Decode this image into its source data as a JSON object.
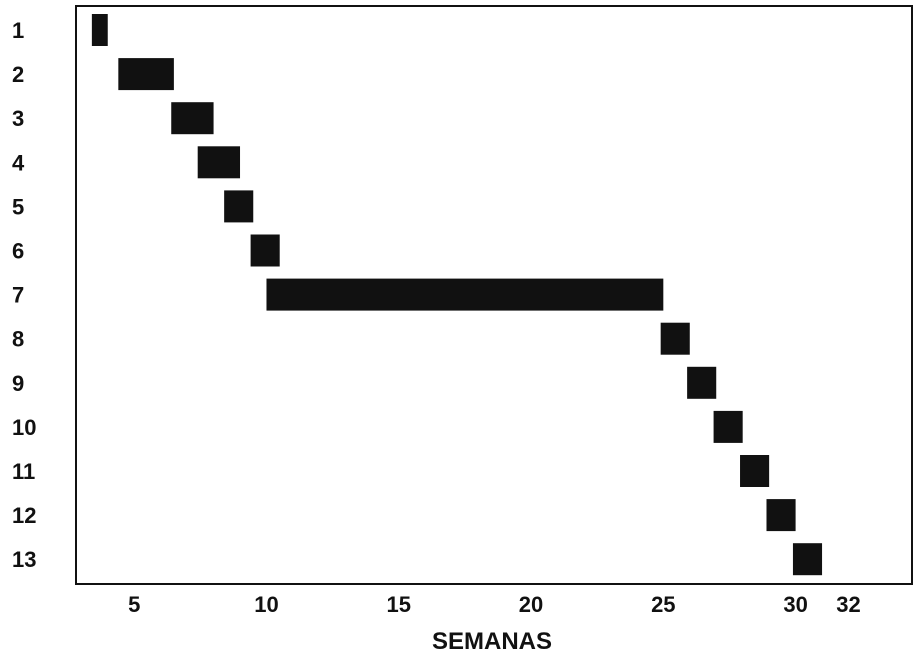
{
  "chart_data": {
    "type": "gantt",
    "xlabel": "SEMANAS",
    "ylabel": "",
    "title": "",
    "xlim": [
      2.8,
      34.4
    ],
    "x_ticks": [
      5,
      10,
      15,
      20,
      25,
      30,
      32
    ],
    "tasks": [
      {
        "label": "1",
        "start": 3.4,
        "end": 4.0
      },
      {
        "label": "2",
        "start": 4.4,
        "end": 6.5
      },
      {
        "label": "3",
        "start": 6.4,
        "end": 8.0
      },
      {
        "label": "4",
        "start": 7.4,
        "end": 9.0
      },
      {
        "label": "5",
        "start": 8.4,
        "end": 9.5
      },
      {
        "label": "6",
        "start": 9.4,
        "end": 10.5
      },
      {
        "label": "7",
        "start": 10.0,
        "end": 25.0
      },
      {
        "label": "8",
        "start": 24.9,
        "end": 26.0
      },
      {
        "label": "9",
        "start": 25.9,
        "end": 27.0
      },
      {
        "label": "10",
        "start": 26.9,
        "end": 28.0
      },
      {
        "label": "11",
        "start": 27.9,
        "end": 29.0
      },
      {
        "label": "12",
        "start": 28.9,
        "end": 30.0
      },
      {
        "label": "13",
        "start": 29.9,
        "end": 31.0
      }
    ],
    "grid": false,
    "bar_color": "#111111"
  }
}
